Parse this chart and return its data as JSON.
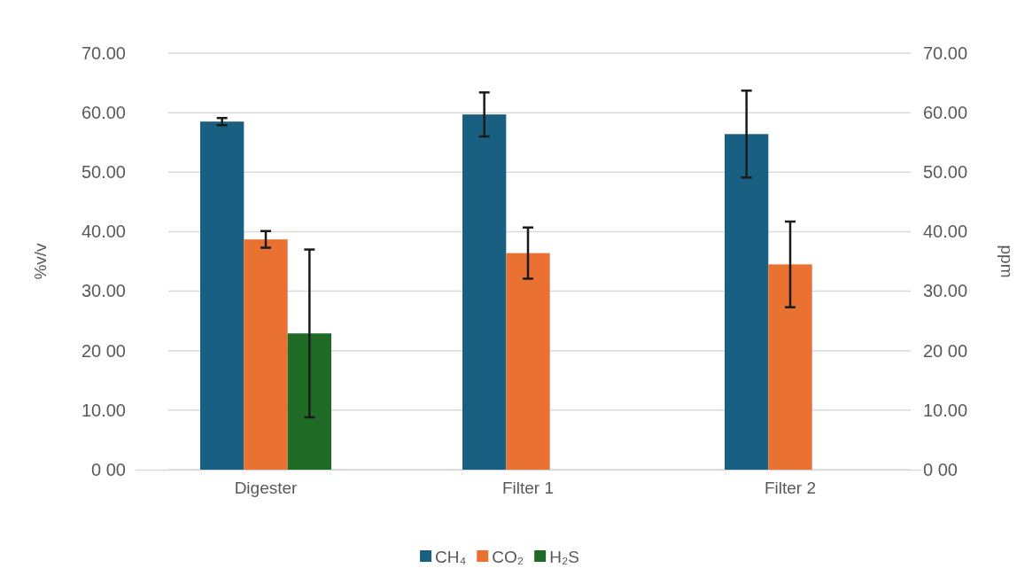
{
  "chart_data": {
    "type": "bar",
    "ylabel": "%v/v",
    "y2label": "ppm",
    "categories": [
      "Digester",
      "Filter 1",
      "Filter 2"
    ],
    "series": [
      {
        "name": "CH₄",
        "color": "#185f82",
        "values": [
          58.5,
          59.7,
          56.4
        ],
        "errors": [
          0.6,
          3.7,
          7.3
        ]
      },
      {
        "name": "CO₂",
        "color": "#e97132",
        "values": [
          38.7,
          36.4,
          34.5
        ],
        "errors": [
          1.4,
          4.3,
          7.2
        ]
      },
      {
        "name": "H₂S",
        "color": "#1f6b26",
        "values": [
          22.9,
          null,
          null
        ],
        "errors": [
          14.1,
          null,
          null
        ]
      }
    ],
    "ylim": [
      0,
      70
    ],
    "yticks": [
      {
        "value": 0,
        "label": "0 00"
      },
      {
        "value": 10,
        "label": "10.00"
      },
      {
        "value": 20,
        "label": "20 00"
      },
      {
        "value": 30,
        "label": "30.00"
      },
      {
        "value": 40,
        "label": "40.00"
      },
      {
        "value": 50,
        "label": "50.00"
      },
      {
        "value": 60,
        "label": "60.00"
      },
      {
        "value": 70,
        "label": "70.00"
      }
    ],
    "y2lim": [
      0,
      70
    ],
    "y2ticks": [
      {
        "value": 0,
        "label": "0 00"
      },
      {
        "value": 10,
        "label": "10.00"
      },
      {
        "value": 20,
        "label": "20 00"
      },
      {
        "value": 30,
        "label": "30.00"
      },
      {
        "value": 40,
        "label": "40.00"
      },
      {
        "value": 50,
        "label": "50.00"
      },
      {
        "value": 60,
        "label": "60.00"
      },
      {
        "value": 70,
        "label": "70.00"
      }
    ],
    "grid": "y",
    "legend": "bottom"
  }
}
